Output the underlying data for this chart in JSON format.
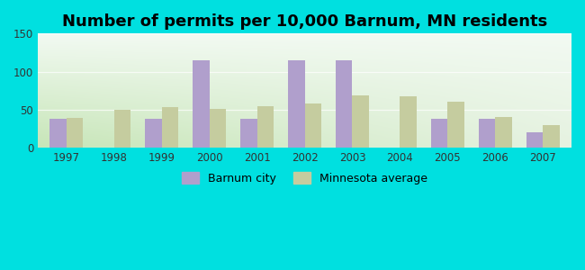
{
  "title": "Number of permits per 10,000 Barnum, MN residents",
  "years": [
    1997,
    1998,
    1999,
    2000,
    2001,
    2002,
    2003,
    2004,
    2005,
    2006,
    2007
  ],
  "barnum_city": [
    38,
    0,
    38,
    115,
    38,
    115,
    115,
    0,
    38,
    38,
    20
  ],
  "mn_average": [
    39,
    50,
    54,
    51,
    55,
    58,
    69,
    68,
    61,
    40,
    30
  ],
  "bar_color_city": "#b09fcc",
  "bar_color_mn": "#c5cc9f",
  "ylim": [
    0,
    150
  ],
  "yticks": [
    0,
    50,
    100,
    150
  ],
  "bg_color_topleft": "#d8edd8",
  "bg_color_topright": "#f0f5f0",
  "bg_color_bottom": "#e8f0d0",
  "outer_bg": "#00e0e0",
  "legend_city": "Barnum city",
  "legend_mn": "Minnesota average",
  "title_fontsize": 13,
  "bar_width": 0.35
}
